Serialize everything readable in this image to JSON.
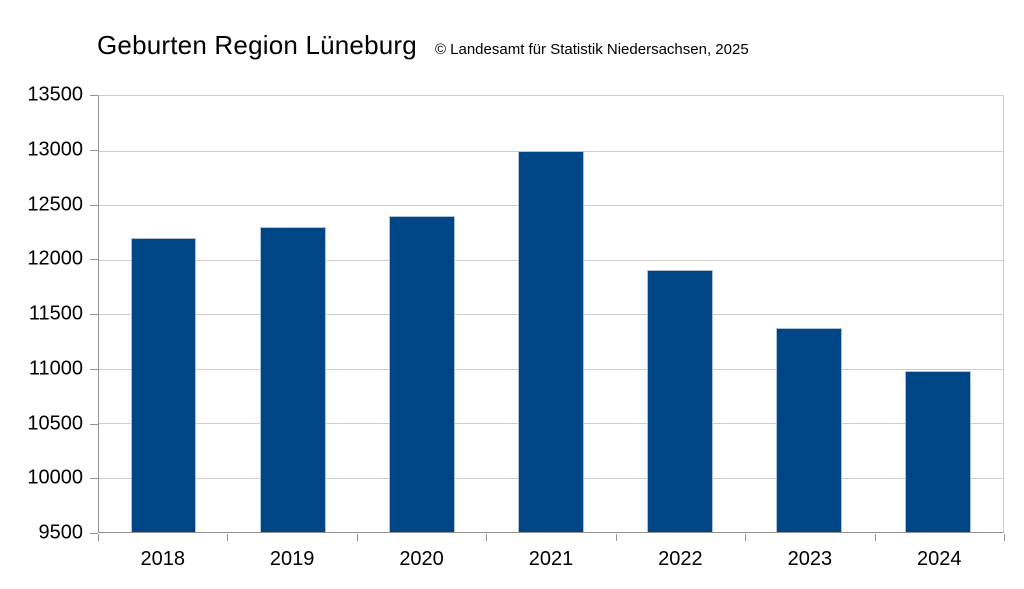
{
  "chart_data": {
    "type": "bar",
    "title": "Geburten Region Lüneburg",
    "subtitle": "© Landesamt für Statistik Niedersachsen, 2025",
    "categories": [
      "2018",
      "2019",
      "2020",
      "2021",
      "2022",
      "2023",
      "2024"
    ],
    "values": [
      12200,
      12300,
      12400,
      13000,
      11900,
      11370,
      10980
    ],
    "xlabel": "",
    "ylabel": "",
    "ylim": [
      9500,
      13500
    ],
    "ytick_step": 500,
    "grid": true,
    "legend": "none",
    "bar_fraction_of_category": 0.51,
    "colors": {
      "bar": "#004586",
      "bar_border": "#b0c1d6",
      "gridline": "#cdcdcd",
      "axis": "#919191",
      "text": "#000000",
      "background": "#ffffff"
    }
  }
}
